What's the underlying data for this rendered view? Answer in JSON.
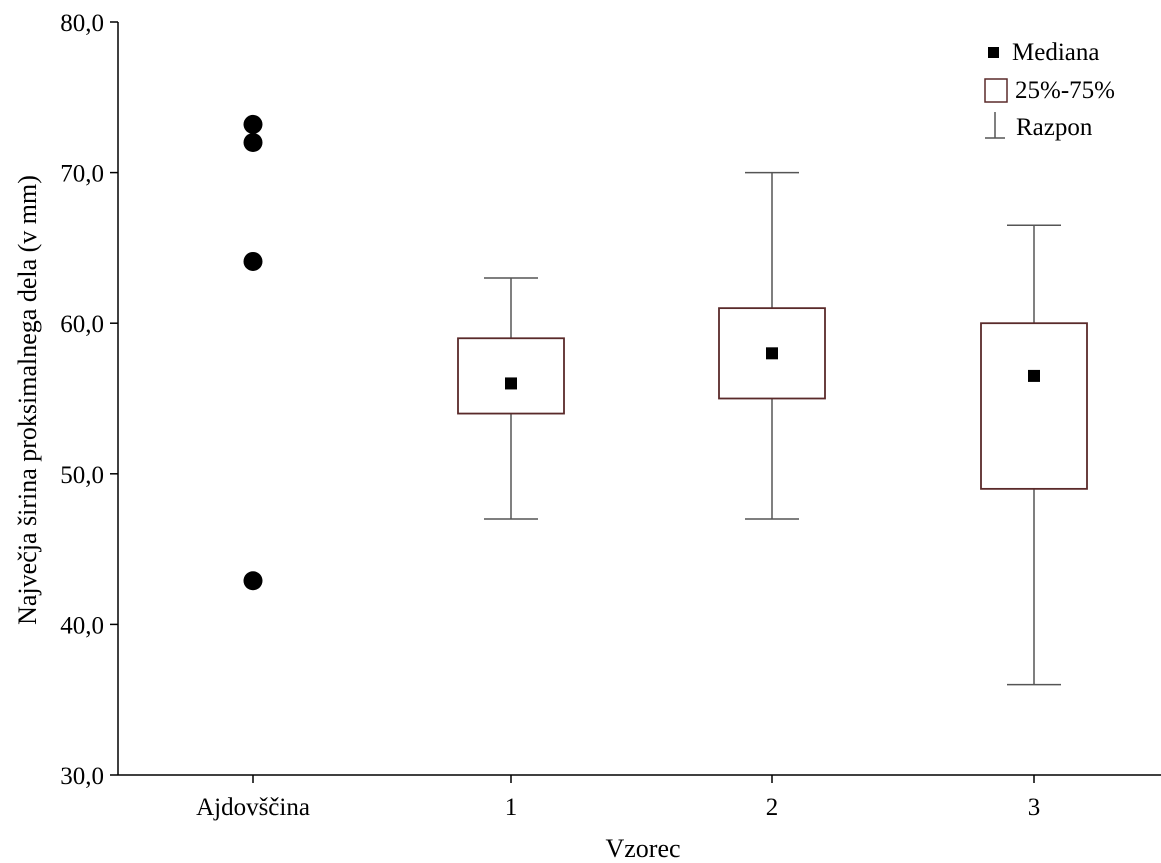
{
  "chart_data": {
    "type": "boxplot",
    "xlabel": "Vzorec",
    "ylabel": "Največja širina proksimalnega dela (v mm)",
    "ylim": [
      30,
      80
    ],
    "yticks": [
      "30,0",
      "40,0",
      "50,0",
      "60,0",
      "70,0",
      "80,0"
    ],
    "ytick_values": [
      30,
      40,
      50,
      60,
      70,
      80
    ],
    "categories": [
      "Ajdovščina",
      "1",
      "2",
      "3"
    ],
    "points": {
      "category": "Ajdovščina",
      "values": [
        73.2,
        72.0,
        64.1,
        42.9
      ]
    },
    "boxes": [
      {
        "category": "1",
        "min": 47.0,
        "q1": 54.0,
        "median": 56.0,
        "q3": 59.0,
        "max": 63.0
      },
      {
        "category": "2",
        "min": 47.0,
        "q1": 55.0,
        "median": 58.0,
        "q3": 61.0,
        "max": 70.0
      },
      {
        "category": "3",
        "min": 36.0,
        "q1": 49.0,
        "median": 56.5,
        "q3": 60.0,
        "max": 66.5
      }
    ],
    "legend": {
      "placement": "top-right",
      "entries": [
        {
          "label": "Mediana",
          "symbol": "square"
        },
        {
          "label": "25%-75%",
          "symbol": "box"
        },
        {
          "label": "Razpon",
          "symbol": "whisker"
        }
      ]
    },
    "grid": false,
    "colors": {
      "box_stroke": "#5a2a2a",
      "whisker": "#555555",
      "marker": "#000000",
      "axis": "#000000"
    }
  }
}
